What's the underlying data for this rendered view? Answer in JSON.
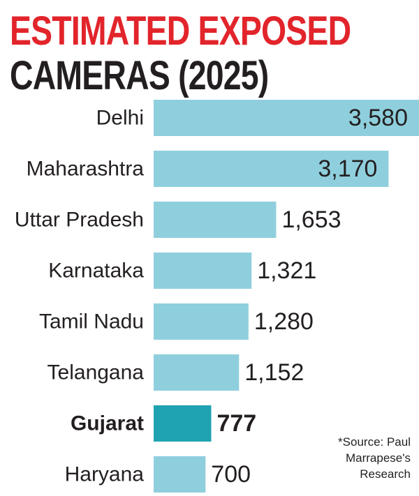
{
  "title_line1": "ESTIMATED EXPOSED",
  "title_line2": "CAMERAS (2025)",
  "source": "*Source: Paul Marrapese's Research",
  "colors": {
    "title_accent": "#e2242b",
    "title_dark": "#231f20",
    "bar": "#8fcfdd",
    "bar_highlight": "#1fa3b2"
  },
  "chart_data": {
    "type": "bar",
    "orientation": "horizontal",
    "categories": [
      "Delhi",
      "Maharashtra",
      "Uttar Pradesh",
      "Karnataka",
      "Tamil Nadu",
      "Telangana",
      "Gujarat",
      "Haryana"
    ],
    "values": [
      3580,
      3170,
      1653,
      1321,
      1280,
      1152,
      777,
      700
    ],
    "value_labels": [
      "3,580",
      "3,170",
      "1,653",
      "1,321",
      "1,280",
      "1,152",
      "777",
      "700"
    ],
    "highlight": "Gujarat",
    "xlim": [
      0,
      3580
    ],
    "grid": false,
    "legend": "none"
  }
}
